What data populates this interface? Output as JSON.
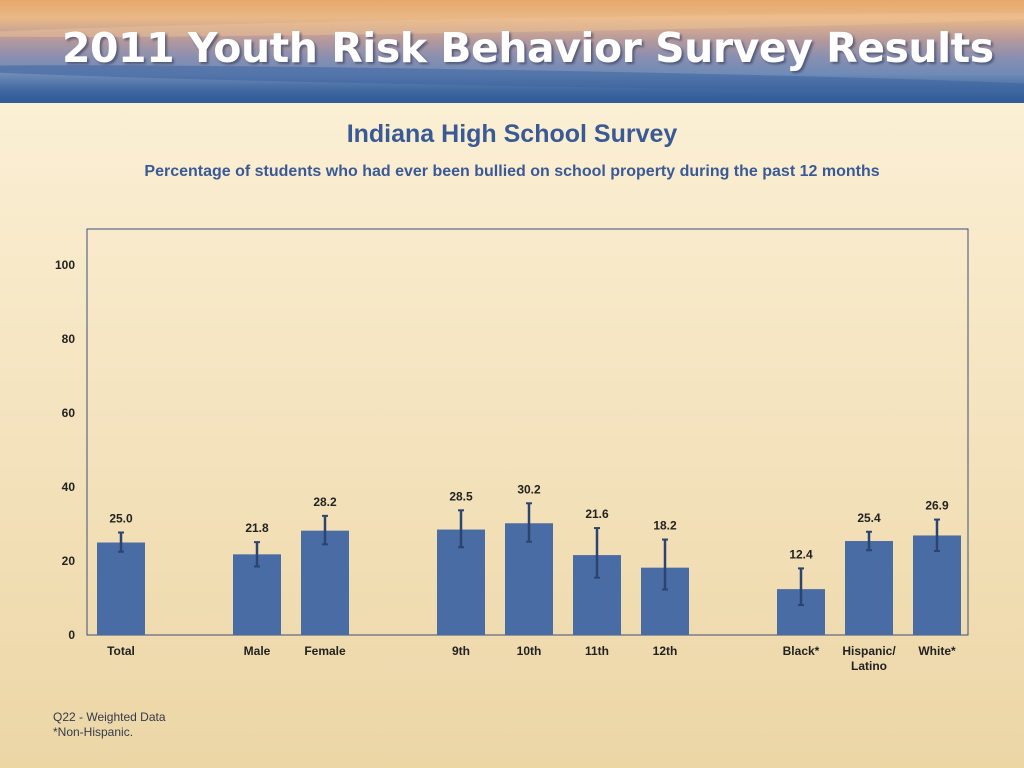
{
  "banner": {
    "title": "2011 Youth Risk Behavior Survey Results"
  },
  "slide": {
    "title": "Indiana High School Survey",
    "subtitle": "Percentage of students who had ever been bullied on school property during the past 12 months"
  },
  "colors": {
    "bar": "#4a6ca4",
    "errorbar": "#2b4470",
    "text": "#3a5a96",
    "axis": "#3b4f7a"
  },
  "chart_data": {
    "type": "bar",
    "title": "Indiana High School Survey",
    "subtitle": "Percentage of students who had ever been bullied on school property during the past 12 months",
    "xlabel": "",
    "ylabel": "",
    "ylim": [
      0,
      100
    ],
    "yticks": [
      0,
      20,
      40,
      60,
      80,
      100
    ],
    "grid": false,
    "groups": [
      [
        "Total"
      ],
      [
        "Male",
        "Female"
      ],
      [
        "9th",
        "10th",
        "11th",
        "12th"
      ],
      [
        "Black*",
        "Hispanic/ Latino",
        "White*"
      ]
    ],
    "categories": [
      "Total",
      "Male",
      "Female",
      "9th",
      "10th",
      "11th",
      "12th",
      "Black*",
      "Hispanic/ Latino",
      "White*"
    ],
    "category_lines": [
      [
        "Total"
      ],
      [
        "Male"
      ],
      [
        "Female"
      ],
      [
        "9th"
      ],
      [
        "10th"
      ],
      [
        "11th"
      ],
      [
        "12th"
      ],
      [
        "Black*"
      ],
      [
        "Hispanic/",
        "Latino"
      ],
      [
        "White*"
      ]
    ],
    "values": [
      25.0,
      21.8,
      28.2,
      28.5,
      30.2,
      21.6,
      18.2,
      12.4,
      25.4,
      26.9
    ],
    "value_labels": [
      "25.0",
      "21.8",
      "28.2",
      "28.5",
      "30.2",
      "21.6",
      "18.2",
      "12.4",
      "25.4",
      "26.9"
    ],
    "ci_lower": [
      22.5,
      18.5,
      24.5,
      23.7,
      25.2,
      15.5,
      12.3,
      8.1,
      22.9,
      22.7
    ],
    "ci_upper": [
      27.7,
      25.1,
      32.2,
      33.7,
      35.6,
      28.9,
      25.8,
      18.0,
      27.9,
      31.2
    ]
  },
  "footnotes": {
    "line1": "Q22 - Weighted Data",
    "line2": "*Non-Hispanic."
  }
}
